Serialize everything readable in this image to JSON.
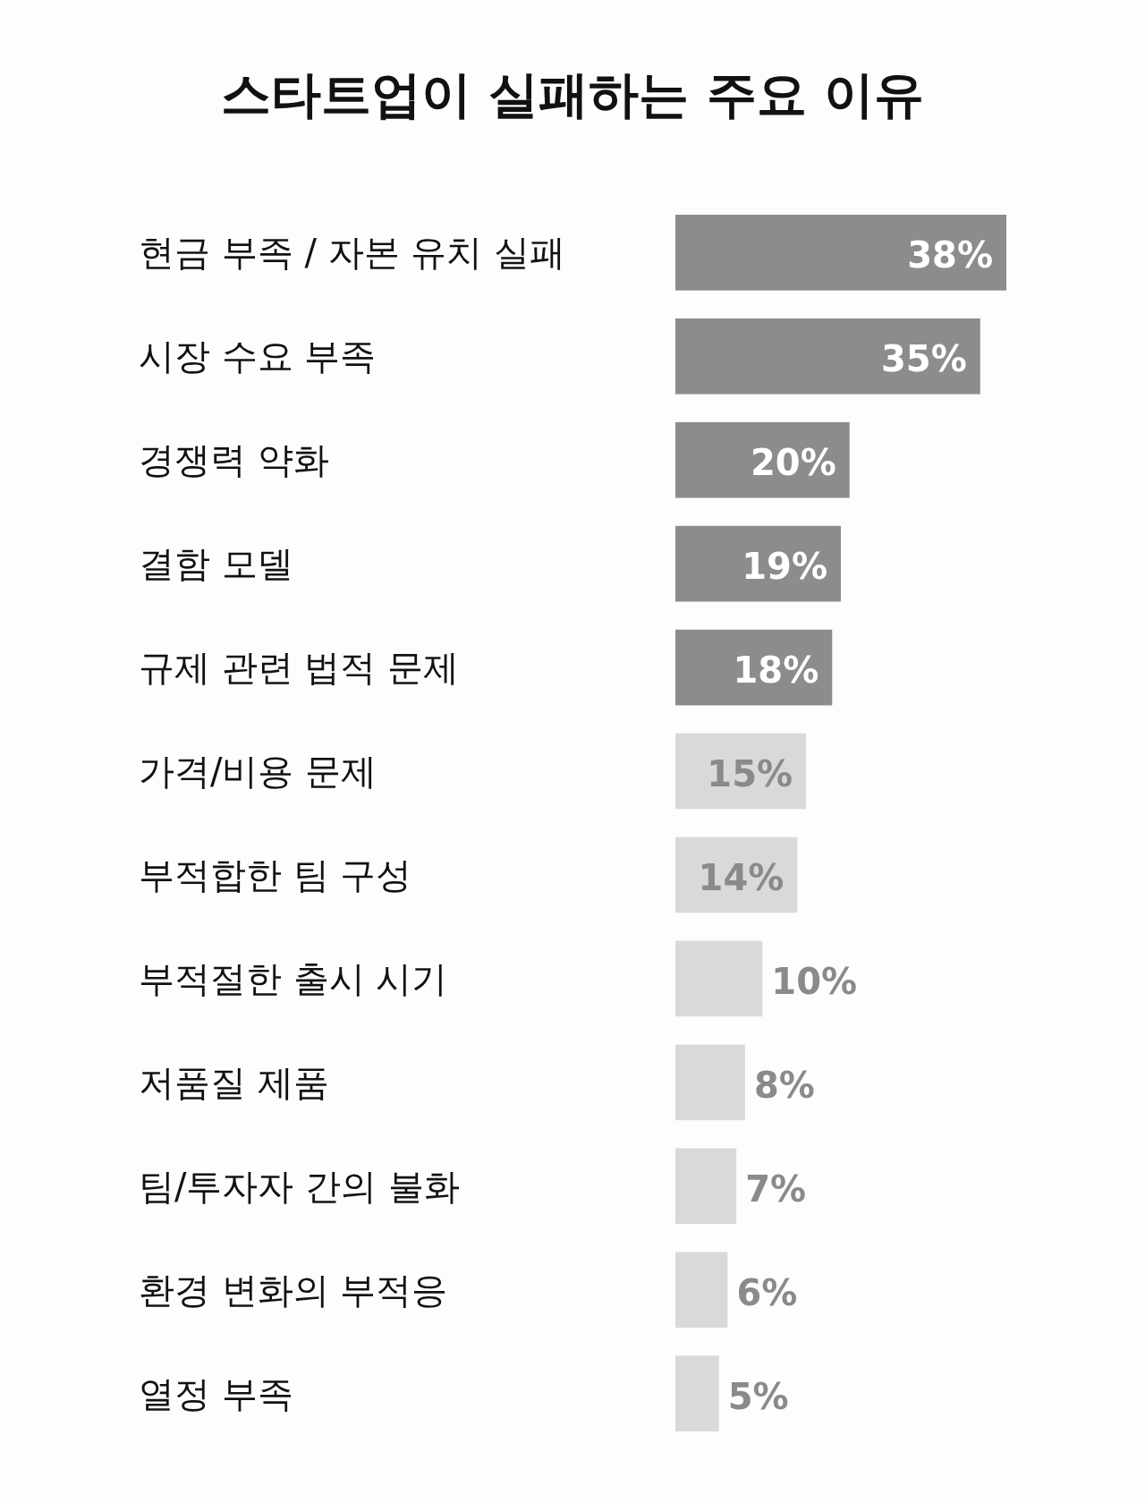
{
  "chart_data": {
    "type": "bar",
    "orientation": "horizontal",
    "title": "스타트업이 실패하는 주요 이유",
    "categories": [
      "현금 부족 / 자본 유치 실패",
      "시장 수요 부족",
      "경쟁력 약화",
      "결함 모델",
      "규제 관련 법적 문제",
      "가격/비용 문제",
      "부적합한 팀 구성",
      "부적절한 출시 시기",
      "저품질 제품",
      "팀/투자자 간의 불화",
      "환경 변화의 부적응",
      "열정 부족"
    ],
    "values": [
      38,
      35,
      20,
      19,
      18,
      15,
      14,
      10,
      8,
      7,
      6,
      5
    ],
    "value_labels": [
      "38%",
      "35%",
      "20%",
      "19%",
      "18%",
      "15%",
      "14%",
      "10%",
      "8%",
      "7%",
      "6%",
      "5%"
    ],
    "colors": [
      "#8c8c8c",
      "#8c8c8c",
      "#8c8c8c",
      "#8c8c8c",
      "#8c8c8c",
      "#d9d9d9",
      "#d9d9d9",
      "#d9d9d9",
      "#d9d9d9",
      "#d9d9d9",
      "#d9d9d9",
      "#d9d9d9"
    ]
  }
}
